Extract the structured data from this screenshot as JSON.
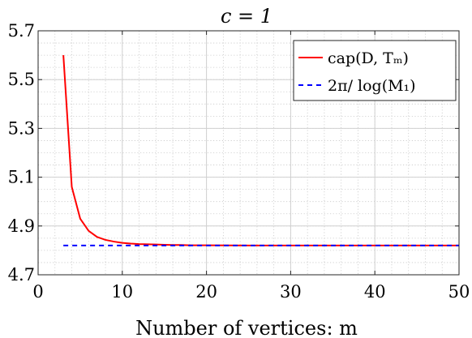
{
  "chart_data": {
    "type": "line",
    "title": "c = 1",
    "xlabel": "Number of vertices: m",
    "ylabel": "",
    "xlim": [
      0,
      50
    ],
    "ylim": [
      4.7,
      5.7
    ],
    "xticks": [
      0,
      10,
      20,
      30,
      40,
      50
    ],
    "yticks": [
      4.7,
      4.9,
      5.1,
      5.3,
      5.5,
      5.7
    ],
    "xtick_labels": [
      "0",
      "10",
      "20",
      "30",
      "40",
      "50"
    ],
    "ytick_labels": [
      "4.7",
      "4.9",
      "5.1",
      "5.3",
      "5.5",
      "5.7"
    ],
    "grid": true,
    "minor_grid": true,
    "legend_position": "top-right",
    "series": [
      {
        "name": "cap(D, T_m)",
        "color": "#ff0000",
        "style": "solid",
        "x": [
          3,
          4,
          5,
          6,
          7,
          8,
          9,
          10,
          11,
          12,
          13,
          14,
          15,
          16,
          17,
          18,
          19,
          20,
          25,
          30,
          35,
          40,
          45,
          50
        ],
        "y": [
          5.6,
          5.06,
          4.93,
          4.88,
          4.855,
          4.843,
          4.836,
          4.831,
          4.828,
          4.826,
          4.825,
          4.824,
          4.823,
          4.822,
          4.822,
          4.821,
          4.821,
          4.821,
          4.82,
          4.82,
          4.82,
          4.82,
          4.82,
          4.82
        ]
      },
      {
        "name": "2π/log(M_1)",
        "color": "#0000ff",
        "style": "dashed",
        "x": [
          3,
          50
        ],
        "y": [
          4.82,
          4.82
        ]
      }
    ]
  }
}
